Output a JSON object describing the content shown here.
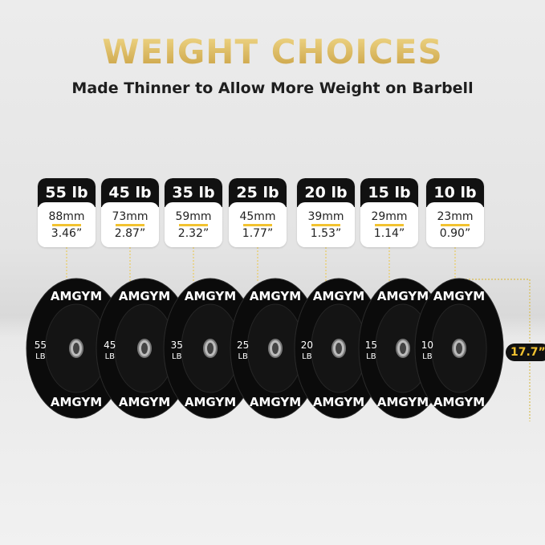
{
  "title": "WEIGHT CHOICES",
  "subtitle": "Made Thinner to Allow More Weight on Barbell",
  "brand": "AMGYM",
  "plates": [
    {
      "weight": "55 lb",
      "mm": "88mm",
      "inch": "3.46”",
      "num": "55"
    },
    {
      "weight": "45 lb",
      "mm": "73mm",
      "inch": "2.87”",
      "num": "45"
    },
    {
      "weight": "35 lb",
      "mm": "59mm",
      "inch": "2.32”",
      "num": "35"
    },
    {
      "weight": "25 lb",
      "mm": "45mm",
      "inch": "1.77”",
      "num": "25"
    },
    {
      "weight": "20 lb",
      "mm": "39mm",
      "inch": "1.53”",
      "num": "20"
    },
    {
      "weight": "15 lb",
      "mm": "29mm",
      "inch": "1.14”",
      "num": "15"
    },
    {
      "weight": "10 lb",
      "mm": "23mm",
      "inch": "0.90”",
      "num": "10"
    }
  ],
  "unit": "LB",
  "diameter": "17.7”",
  "colors": {
    "gold": "#d8b254",
    "accent": "#f2c230",
    "plate": "#111111"
  }
}
